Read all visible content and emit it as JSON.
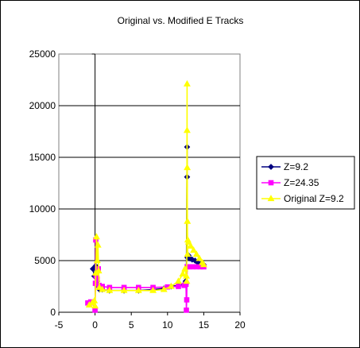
{
  "chart_data": {
    "type": "scatter",
    "title": "Original vs. Modified E Tracks",
    "xlim": [
      -5,
      20
    ],
    "ylim": [
      0,
      25000
    ],
    "x_ticks": [
      "-5",
      "0",
      "5",
      "10",
      "15",
      "20"
    ],
    "y_ticks": [
      "0",
      "5000",
      "10000",
      "15000",
      "20000",
      "25000"
    ],
    "grid": "horizontal",
    "legend_position": "right",
    "series": [
      {
        "name": "Z=9.2",
        "color": "#000080",
        "marker": "diamond",
        "points": [
          [
            -0.3,
            4200
          ],
          [
            -0.1,
            3500
          ],
          [
            0.1,
            4500
          ],
          [
            0.3,
            3000
          ],
          [
            0.4,
            2500
          ],
          [
            0.6,
            2200
          ],
          [
            1,
            2200
          ],
          [
            2,
            2100
          ],
          [
            4,
            2100
          ],
          [
            6,
            2100
          ],
          [
            8,
            2200
          ],
          [
            9.5,
            2300
          ],
          [
            10.5,
            2500
          ],
          [
            11.5,
            2600
          ],
          [
            12.3,
            2700
          ],
          [
            12.5,
            3000
          ],
          [
            12.6,
            2800
          ],
          [
            12.7,
            16000
          ],
          [
            12.7,
            13100
          ],
          [
            12.75,
            5300
          ],
          [
            12.9,
            5500
          ],
          [
            13.1,
            5200
          ],
          [
            13.4,
            5100
          ],
          [
            13.8,
            5000
          ],
          [
            14.2,
            4800
          ],
          [
            14.6,
            4700
          ],
          [
            15,
            4600
          ]
        ]
      },
      {
        "name": "Z=24.35",
        "color": "#ff00ff",
        "marker": "square",
        "points": [
          [
            -1.0,
            900
          ],
          [
            -0.6,
            1000
          ],
          [
            -0.3,
            900
          ],
          [
            0.0,
            200
          ],
          [
            0.05,
            2800
          ],
          [
            0.1,
            7000
          ],
          [
            0.15,
            3500
          ],
          [
            0.3,
            3200
          ],
          [
            0.45,
            4200
          ],
          [
            0.55,
            2600
          ],
          [
            1,
            2500
          ],
          [
            2,
            2400
          ],
          [
            4,
            2400
          ],
          [
            6,
            2400
          ],
          [
            8,
            2400
          ],
          [
            10,
            2450
          ],
          [
            11.5,
            2500
          ],
          [
            12.3,
            2600
          ],
          [
            12.55,
            2700
          ],
          [
            12.6,
            200
          ],
          [
            12.65,
            1200
          ],
          [
            12.7,
            4400
          ],
          [
            13,
            4400
          ],
          [
            13.5,
            4400
          ],
          [
            14,
            4400
          ],
          [
            14.5,
            4400
          ],
          [
            15,
            4400
          ]
        ]
      },
      {
        "name": "Original Z=9.2",
        "color": "#ffff00",
        "marker": "triangle",
        "points": [
          [
            -0.8,
            700
          ],
          [
            -0.4,
            900
          ],
          [
            -0.1,
            1100
          ],
          [
            0.0,
            600
          ],
          [
            0.1,
            3800
          ],
          [
            0.2,
            7300
          ],
          [
            0.3,
            5000
          ],
          [
            0.4,
            6500
          ],
          [
            0.5,
            4000
          ],
          [
            0.6,
            2400
          ],
          [
            1,
            2200
          ],
          [
            2,
            2100
          ],
          [
            4,
            2100
          ],
          [
            6,
            2100
          ],
          [
            8,
            2100
          ],
          [
            9.5,
            2200
          ],
          [
            10.5,
            2500
          ],
          [
            11.5,
            3000
          ],
          [
            12.1,
            3700
          ],
          [
            12.4,
            4200
          ],
          [
            12.6,
            3500
          ],
          [
            12.65,
            3000
          ],
          [
            12.7,
            22100
          ],
          [
            12.7,
            17600
          ],
          [
            12.72,
            14000
          ],
          [
            12.74,
            8800
          ],
          [
            12.76,
            5600
          ],
          [
            12.8,
            7000
          ],
          [
            12.9,
            6800
          ],
          [
            13.2,
            6400
          ],
          [
            13.6,
            6000
          ],
          [
            14,
            5600
          ],
          [
            14.4,
            5200
          ],
          [
            14.8,
            4800
          ],
          [
            15,
            4600
          ]
        ]
      }
    ]
  }
}
